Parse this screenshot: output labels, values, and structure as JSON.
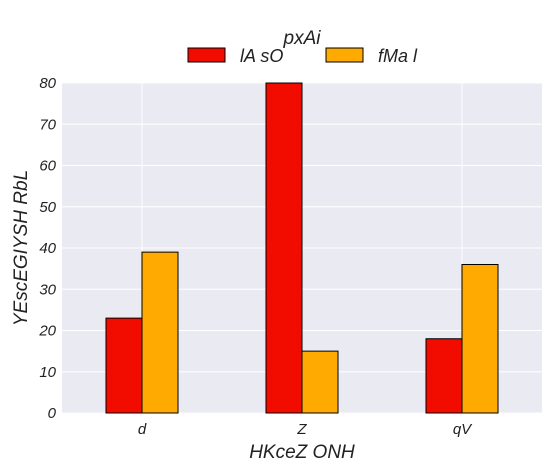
{
  "chart_data": {
    "type": "bar",
    "legend_title": "pxAi",
    "legend_position": "top-center",
    "categories": [
      "d",
      "Z",
      "qV"
    ],
    "series": [
      {
        "name": "lA sO",
        "values": [
          23,
          80,
          18
        ],
        "color": "#f20c00"
      },
      {
        "name": "fMa l",
        "values": [
          39,
          15,
          36
        ],
        "color": "#ffaa00"
      }
    ],
    "xlabel": "HKceZ ONH",
    "ylabel": "YEscEGIYSH RbL",
    "ylim": [
      0,
      80
    ],
    "yticks": [
      0,
      10,
      20,
      30,
      40,
      50,
      60,
      70,
      80
    ],
    "grid": true,
    "plot_background": "#eaeaf2"
  }
}
